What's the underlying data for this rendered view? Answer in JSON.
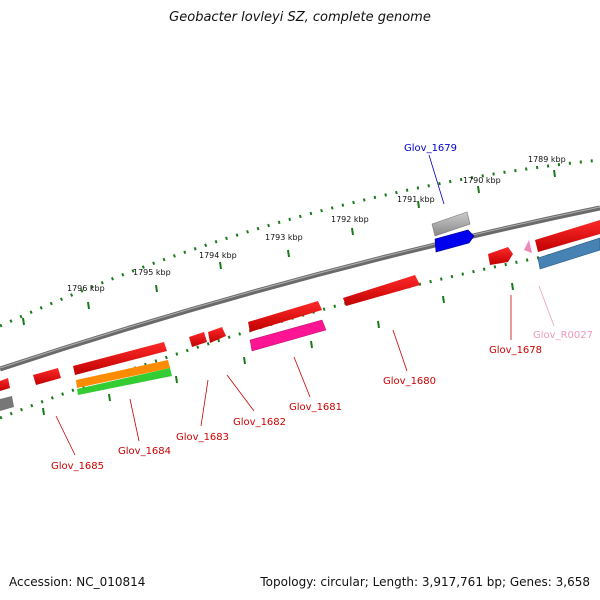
{
  "title": "Geobacter lovleyi SZ, complete genome",
  "footer": {
    "accession": "Accession: NC_010814",
    "summary": "Topology: circular; Length: 3,917,761 bp; Genes: 3,658"
  },
  "ruler_labels": [
    "1789 kbp",
    "1790 kbp",
    "1791 kbp",
    "1792 kbp",
    "1793 kbp",
    "1794 kbp",
    "1795 kbp",
    "1796 kbp"
  ],
  "gene_labels": [
    {
      "text": "Glov_1679",
      "color": "#0000cc"
    },
    {
      "text": "Glov_R0027",
      "color": "#ee99bb"
    },
    {
      "text": "Glov_1678",
      "color": "#cc0000"
    },
    {
      "text": "Glov_1680",
      "color": "#cc0000"
    },
    {
      "text": "Glov_1681",
      "color": "#cc0000"
    },
    {
      "text": "Glov_1682",
      "color": "#cc0000"
    },
    {
      "text": "Glov_1683",
      "color": "#cc0000"
    },
    {
      "text": "Glov_1684",
      "color": "#cc0000"
    },
    {
      "text": "Glov_1685",
      "color": "#cc0000"
    }
  ],
  "colors": {
    "cds": "#ff0000",
    "cds_blue": "#0000ee",
    "rrna_pink": "#ff1493",
    "trna": "#ee88bb",
    "orange": "#ff8c00",
    "green": "#33cc33",
    "steelblue": "#4682b4",
    "grey": "#aaaaaa",
    "backbone": "#808080",
    "ruler": "#1a7a1a"
  }
}
